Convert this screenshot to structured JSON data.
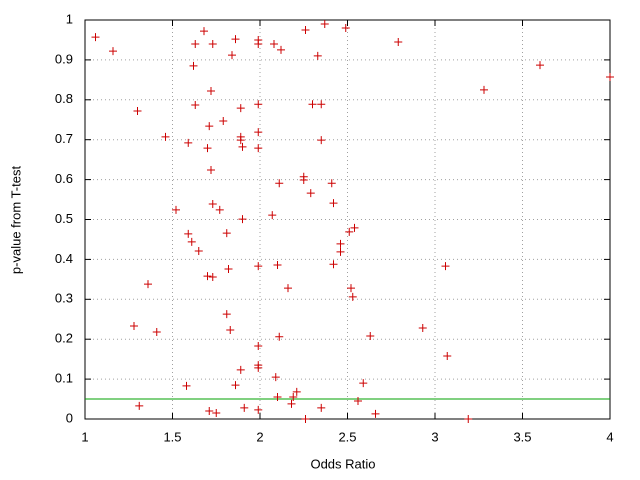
{
  "chart_data": {
    "type": "scatter",
    "xlabel": "Odds Ratio",
    "ylabel": "p-value from T-test",
    "x": [
      1.06,
      1.16,
      1.3,
      1.46,
      1.36,
      1.28,
      1.41,
      1.31,
      1.52,
      1.58,
      1.59,
      1.59,
      1.61,
      1.65,
      1.62,
      1.63,
      1.68,
      1.73,
      1.63,
      1.72,
      1.71,
      1.7,
      1.72,
      1.73,
      1.77,
      1.79,
      1.7,
      1.73,
      1.81,
      1.82,
      1.81,
      1.83,
      1.84,
      1.86,
      1.89,
      1.89,
      1.89,
      1.9,
      1.9,
      1.86,
      1.89,
      1.71,
      1.75,
      1.91,
      1.99,
      1.99,
      1.99,
      1.99,
      1.99,
      1.99,
      1.99,
      1.99,
      1.99,
      1.99,
      2.07,
      2.08,
      2.12,
      2.11,
      2.1,
      2.11,
      2.09,
      2.1,
      2.16,
      2.18,
      2.19,
      2.21,
      2.26,
      2.25,
      2.25,
      2.29,
      2.26,
      2.3,
      2.33,
      2.35,
      2.35,
      2.35,
      2.37,
      2.41,
      2.42,
      2.42,
      2.46,
      2.46,
      2.49,
      2.51,
      2.54,
      2.52,
      2.53,
      2.56,
      2.59,
      2.63,
      2.66,
      2.79,
      2.93,
      3.06,
      3.07,
      3.19,
      3.28,
      3.6,
      4.0
    ],
    "values": [
      0.957,
      0.922,
      0.772,
      0.707,
      0.338,
      0.233,
      0.218,
      0.033,
      0.524,
      0.083,
      0.692,
      0.464,
      0.444,
      0.421,
      0.885,
      0.94,
      0.972,
      0.94,
      0.787,
      0.822,
      0.734,
      0.679,
      0.624,
      0.539,
      0.524,
      0.747,
      0.358,
      0.356,
      0.466,
      0.376,
      0.263,
      0.223,
      0.912,
      0.952,
      0.779,
      0.707,
      0.699,
      0.682,
      0.501,
      0.085,
      0.123,
      0.02,
      0.015,
      0.028,
      0.95,
      0.94,
      0.789,
      0.719,
      0.679,
      0.383,
      0.183,
      0.135,
      0.128,
      0.023,
      0.511,
      0.94,
      0.925,
      0.591,
      0.386,
      0.206,
      0.105,
      0.055,
      0.328,
      0.038,
      0.055,
      0.068,
      0.975,
      0.607,
      0.599,
      0.566,
      0.0,
      0.789,
      0.91,
      0.789,
      0.699,
      0.028,
      0.99,
      0.591,
      0.541,
      0.388,
      0.439,
      0.419,
      0.98,
      0.469,
      0.479,
      0.328,
      0.306,
      0.045,
      0.09,
      0.208,
      0.013,
      0.945,
      0.228,
      0.383,
      0.158,
      0.0,
      0.825,
      0.887,
      0.857
    ],
    "color": "#cc0000",
    "reference_line": {
      "value": 0.05,
      "color": "#00a000"
    },
    "xlim": [
      1,
      4
    ],
    "xticks": [
      1,
      1.5,
      2,
      2.5,
      3,
      3.5,
      4
    ],
    "ylim": [
      0,
      1
    ],
    "yticks": [
      0,
      0.1,
      0.2,
      0.3,
      0.4,
      0.5,
      0.6,
      0.7,
      0.8,
      0.9,
      1
    ],
    "grid": true
  }
}
